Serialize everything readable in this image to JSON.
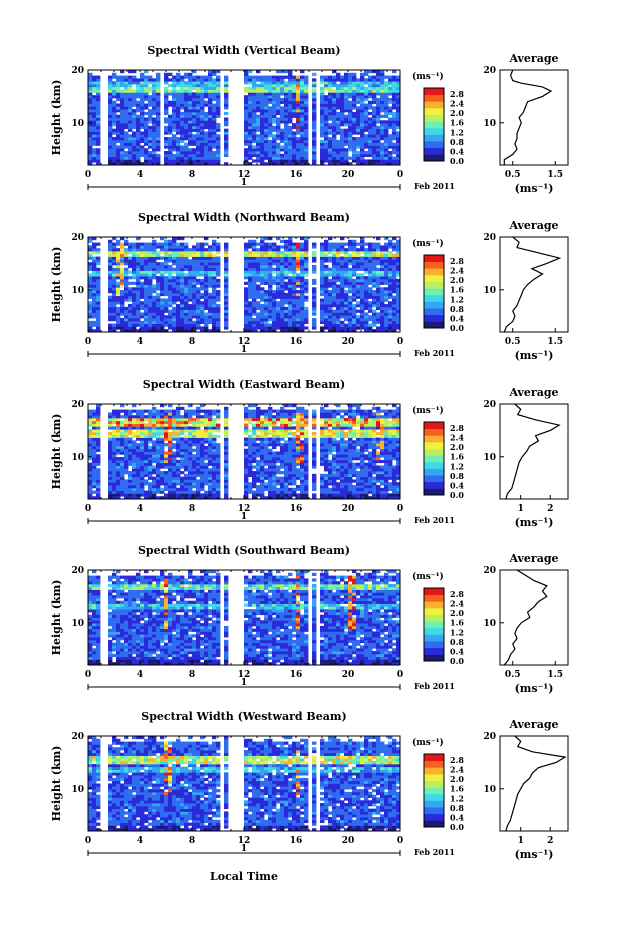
{
  "xaxis_label": "Local Time",
  "date_mark": "1",
  "date_label": "Feb 2011",
  "colorbar": {
    "unit": "(ms⁻¹)",
    "ticks": [
      "0.0",
      "0.4",
      "0.8",
      "1.2",
      "1.6",
      "2.0",
      "2.4",
      "2.8"
    ],
    "colors": [
      "#1a1a6e",
      "#2a2ad8",
      "#2f6cf0",
      "#35a6f2",
      "#3fd8e6",
      "#6ff0b0",
      "#b8f060",
      "#f0f040",
      "#f8b030",
      "#f86020",
      "#e01818"
    ]
  },
  "chart_data": [
    {
      "type": "heatmap",
      "title": "Spectral Width (Vertical Beam)",
      "ylabel": "Height (km)",
      "xlabel": "",
      "x_ticks": [
        "0",
        "4",
        "8",
        "12",
        "16",
        "20",
        "0"
      ],
      "y_ticks": [
        "10",
        "20"
      ],
      "ylim": [
        2,
        20
      ],
      "xlim": [
        0,
        24
      ],
      "gaps": [
        [
          0.9,
          1.6
        ],
        [
          5.6,
          5.9
        ],
        [
          10.1,
          10.4
        ],
        [
          10.9,
          12.0
        ],
        [
          16.9,
          17.2
        ],
        [
          17.6,
          17.9
        ]
      ],
      "bright_bands": [
        {
          "height_km": 16.5,
          "level": 1.6
        },
        {
          "height_km": 17.5,
          "level": 1.2
        }
      ],
      "spikes": [
        {
          "time_h": 16.2,
          "level": 2.8
        }
      ],
      "average": {
        "title": "Average",
        "xlabel": "(ms⁻¹)",
        "x_ticks": [
          "0.5",
          "1.5"
        ],
        "xlim": [
          0.2,
          1.8
        ],
        "y_ticks": [
          "10",
          "20"
        ],
        "profile": [
          [
            0.3,
            2
          ],
          [
            0.3,
            3
          ],
          [
            0.5,
            4
          ],
          [
            0.6,
            5
          ],
          [
            0.55,
            6
          ],
          [
            0.6,
            7
          ],
          [
            0.6,
            8
          ],
          [
            0.65,
            9
          ],
          [
            0.7,
            10
          ],
          [
            0.65,
            11
          ],
          [
            0.75,
            12
          ],
          [
            0.8,
            13
          ],
          [
            0.85,
            14
          ],
          [
            1.2,
            15
          ],
          [
            1.4,
            16
          ],
          [
            1.2,
            16.8
          ],
          [
            0.7,
            17.5
          ],
          [
            0.5,
            18
          ],
          [
            0.45,
            19
          ],
          [
            0.5,
            20
          ]
        ]
      }
    },
    {
      "type": "heatmap",
      "title": "Spectral Width (Northward Beam)",
      "ylabel": "Height (km)",
      "xlabel": "",
      "x_ticks": [
        "0",
        "4",
        "8",
        "12",
        "16",
        "20",
        "0"
      ],
      "y_ticks": [
        "10",
        "20"
      ],
      "ylim": [
        2,
        20
      ],
      "xlim": [
        0,
        24
      ],
      "gaps": [
        [
          0.9,
          1.6
        ],
        [
          10.1,
          10.4
        ],
        [
          10.9,
          12.0
        ],
        [
          16.9,
          17.2
        ],
        [
          17.6,
          17.9
        ]
      ],
      "bright_bands": [
        {
          "height_km": 16.8,
          "level": 2.0
        },
        {
          "height_km": 13.0,
          "level": 1.2
        }
      ],
      "spikes": [
        {
          "time_h": 16.2,
          "level": 2.8
        },
        {
          "time_h": 2.5,
          "level": 2.4
        }
      ],
      "average": {
        "title": "Average",
        "xlabel": "(ms⁻¹)",
        "x_ticks": [
          "0.5",
          "1.5"
        ],
        "xlim": [
          0.2,
          1.8
        ],
        "y_ticks": [
          "10",
          "20"
        ],
        "profile": [
          [
            0.3,
            2
          ],
          [
            0.35,
            3
          ],
          [
            0.5,
            4
          ],
          [
            0.55,
            5
          ],
          [
            0.5,
            6
          ],
          [
            0.6,
            7
          ],
          [
            0.65,
            8
          ],
          [
            0.7,
            9
          ],
          [
            0.75,
            10
          ],
          [
            0.85,
            11
          ],
          [
            1.0,
            12
          ],
          [
            1.2,
            13
          ],
          [
            0.95,
            14
          ],
          [
            1.3,
            15
          ],
          [
            1.6,
            16
          ],
          [
            1.1,
            17
          ],
          [
            0.6,
            18
          ],
          [
            0.65,
            19
          ],
          [
            0.5,
            20
          ]
        ]
      }
    },
    {
      "type": "heatmap",
      "title": "Spectral Width (Eastward Beam)",
      "ylabel": "Height (km)",
      "xlabel": "",
      "x_ticks": [
        "0",
        "4",
        "8",
        "12",
        "16",
        "20",
        "0"
      ],
      "y_ticks": [
        "10",
        "20"
      ],
      "ylim": [
        2,
        20
      ],
      "xlim": [
        0,
        24
      ],
      "gaps": [
        [
          0.9,
          1.6
        ],
        [
          10.1,
          10.4
        ],
        [
          10.9,
          12.0
        ],
        [
          16.9,
          17.2
        ],
        [
          17.6,
          17.9
        ]
      ],
      "bright_bands": [
        {
          "height_km": 16.5,
          "level": 2.4
        },
        {
          "height_km": 14.5,
          "level": 2.0
        }
      ],
      "spikes": [
        {
          "time_h": 6.1,
          "level": 2.8
        },
        {
          "time_h": 16.3,
          "level": 2.8
        },
        {
          "time_h": 22.5,
          "level": 2.4
        }
      ],
      "average": {
        "title": "Average",
        "xlabel": "(ms⁻¹)",
        "x_ticks": [
          "1",
          "2"
        ],
        "xlim": [
          0.3,
          2.6
        ],
        "y_ticks": [
          "10",
          "20"
        ],
        "profile": [
          [
            0.5,
            2
          ],
          [
            0.55,
            3
          ],
          [
            0.7,
            4
          ],
          [
            0.75,
            5
          ],
          [
            0.8,
            6
          ],
          [
            0.85,
            7
          ],
          [
            0.9,
            8
          ],
          [
            0.95,
            9
          ],
          [
            1.05,
            10
          ],
          [
            1.2,
            11
          ],
          [
            1.3,
            12
          ],
          [
            1.6,
            13
          ],
          [
            1.5,
            14
          ],
          [
            2.0,
            15
          ],
          [
            2.3,
            16
          ],
          [
            1.5,
            17
          ],
          [
            0.9,
            18
          ],
          [
            1.0,
            19
          ],
          [
            0.8,
            20
          ]
        ]
      }
    },
    {
      "type": "heatmap",
      "title": "Spectral Width (Southward Beam)",
      "ylabel": "Height (km)",
      "xlabel": "",
      "x_ticks": [
        "0",
        "4",
        "8",
        "12",
        "16",
        "20",
        "0"
      ],
      "y_ticks": [
        "10",
        "20"
      ],
      "ylim": [
        2,
        20
      ],
      "xlim": [
        0,
        24
      ],
      "gaps": [
        [
          0.9,
          1.6
        ],
        [
          10.1,
          10.4
        ],
        [
          10.9,
          12.0
        ],
        [
          16.9,
          17.2
        ],
        [
          17.6,
          17.9
        ]
      ],
      "bright_bands": [
        {
          "height_km": 17.0,
          "level": 1.6
        },
        {
          "height_km": 13.0,
          "level": 1.2
        }
      ],
      "spikes": [
        {
          "time_h": 6.0,
          "level": 2.8
        },
        {
          "time_h": 16.2,
          "level": 2.8
        },
        {
          "time_h": 20.3,
          "level": 2.8
        }
      ],
      "average": {
        "title": "Average",
        "xlabel": "(ms⁻¹)",
        "x_ticks": [
          "0.5",
          "1.5"
        ],
        "xlim": [
          0.2,
          1.8
        ],
        "y_ticks": [
          "10",
          "20"
        ],
        "profile": [
          [
            0.3,
            2
          ],
          [
            0.4,
            3
          ],
          [
            0.45,
            4
          ],
          [
            0.55,
            5
          ],
          [
            0.5,
            6
          ],
          [
            0.6,
            7
          ],
          [
            0.55,
            8
          ],
          [
            0.6,
            9
          ],
          [
            0.7,
            10
          ],
          [
            0.9,
            11
          ],
          [
            0.85,
            12
          ],
          [
            1.0,
            13
          ],
          [
            1.1,
            14
          ],
          [
            1.3,
            15
          ],
          [
            1.2,
            16
          ],
          [
            1.3,
            17
          ],
          [
            1.0,
            18
          ],
          [
            0.8,
            19
          ],
          [
            0.6,
            20
          ]
        ]
      }
    },
    {
      "type": "heatmap",
      "title": "Spectral Width (Westward Beam)",
      "ylabel": "Height (km)",
      "xlabel": "",
      "x_ticks": [
        "0",
        "4",
        "8",
        "12",
        "16",
        "20",
        "0"
      ],
      "y_ticks": [
        "10",
        "20"
      ],
      "ylim": [
        2,
        20
      ],
      "xlim": [
        0,
        24
      ],
      "gaps": [
        [
          0.9,
          1.6
        ],
        [
          10.1,
          10.4
        ],
        [
          10.9,
          12.0
        ],
        [
          16.9,
          17.2
        ],
        [
          17.6,
          17.9
        ]
      ],
      "bright_bands": [
        {
          "height_km": 15.5,
          "level": 2.0
        },
        {
          "height_km": 13.5,
          "level": 1.2
        }
      ],
      "spikes": [
        {
          "time_h": 6.2,
          "level": 2.8
        },
        {
          "time_h": 16.2,
          "level": 2.8
        }
      ],
      "average": {
        "title": "Average",
        "xlabel": "(ms⁻¹)",
        "x_ticks": [
          "1",
          "2"
        ],
        "xlim": [
          0.3,
          2.6
        ],
        "y_ticks": [
          "10",
          "20"
        ],
        "profile": [
          [
            0.5,
            2
          ],
          [
            0.55,
            3
          ],
          [
            0.65,
            4
          ],
          [
            0.7,
            5
          ],
          [
            0.75,
            6
          ],
          [
            0.8,
            7
          ],
          [
            0.85,
            8
          ],
          [
            0.9,
            9
          ],
          [
            1.0,
            10
          ],
          [
            1.1,
            11
          ],
          [
            1.3,
            12
          ],
          [
            1.4,
            13
          ],
          [
            1.6,
            14
          ],
          [
            2.2,
            15
          ],
          [
            2.5,
            16
          ],
          [
            1.4,
            17
          ],
          [
            0.9,
            18
          ],
          [
            1.0,
            19
          ],
          [
            0.8,
            20
          ]
        ]
      }
    }
  ]
}
